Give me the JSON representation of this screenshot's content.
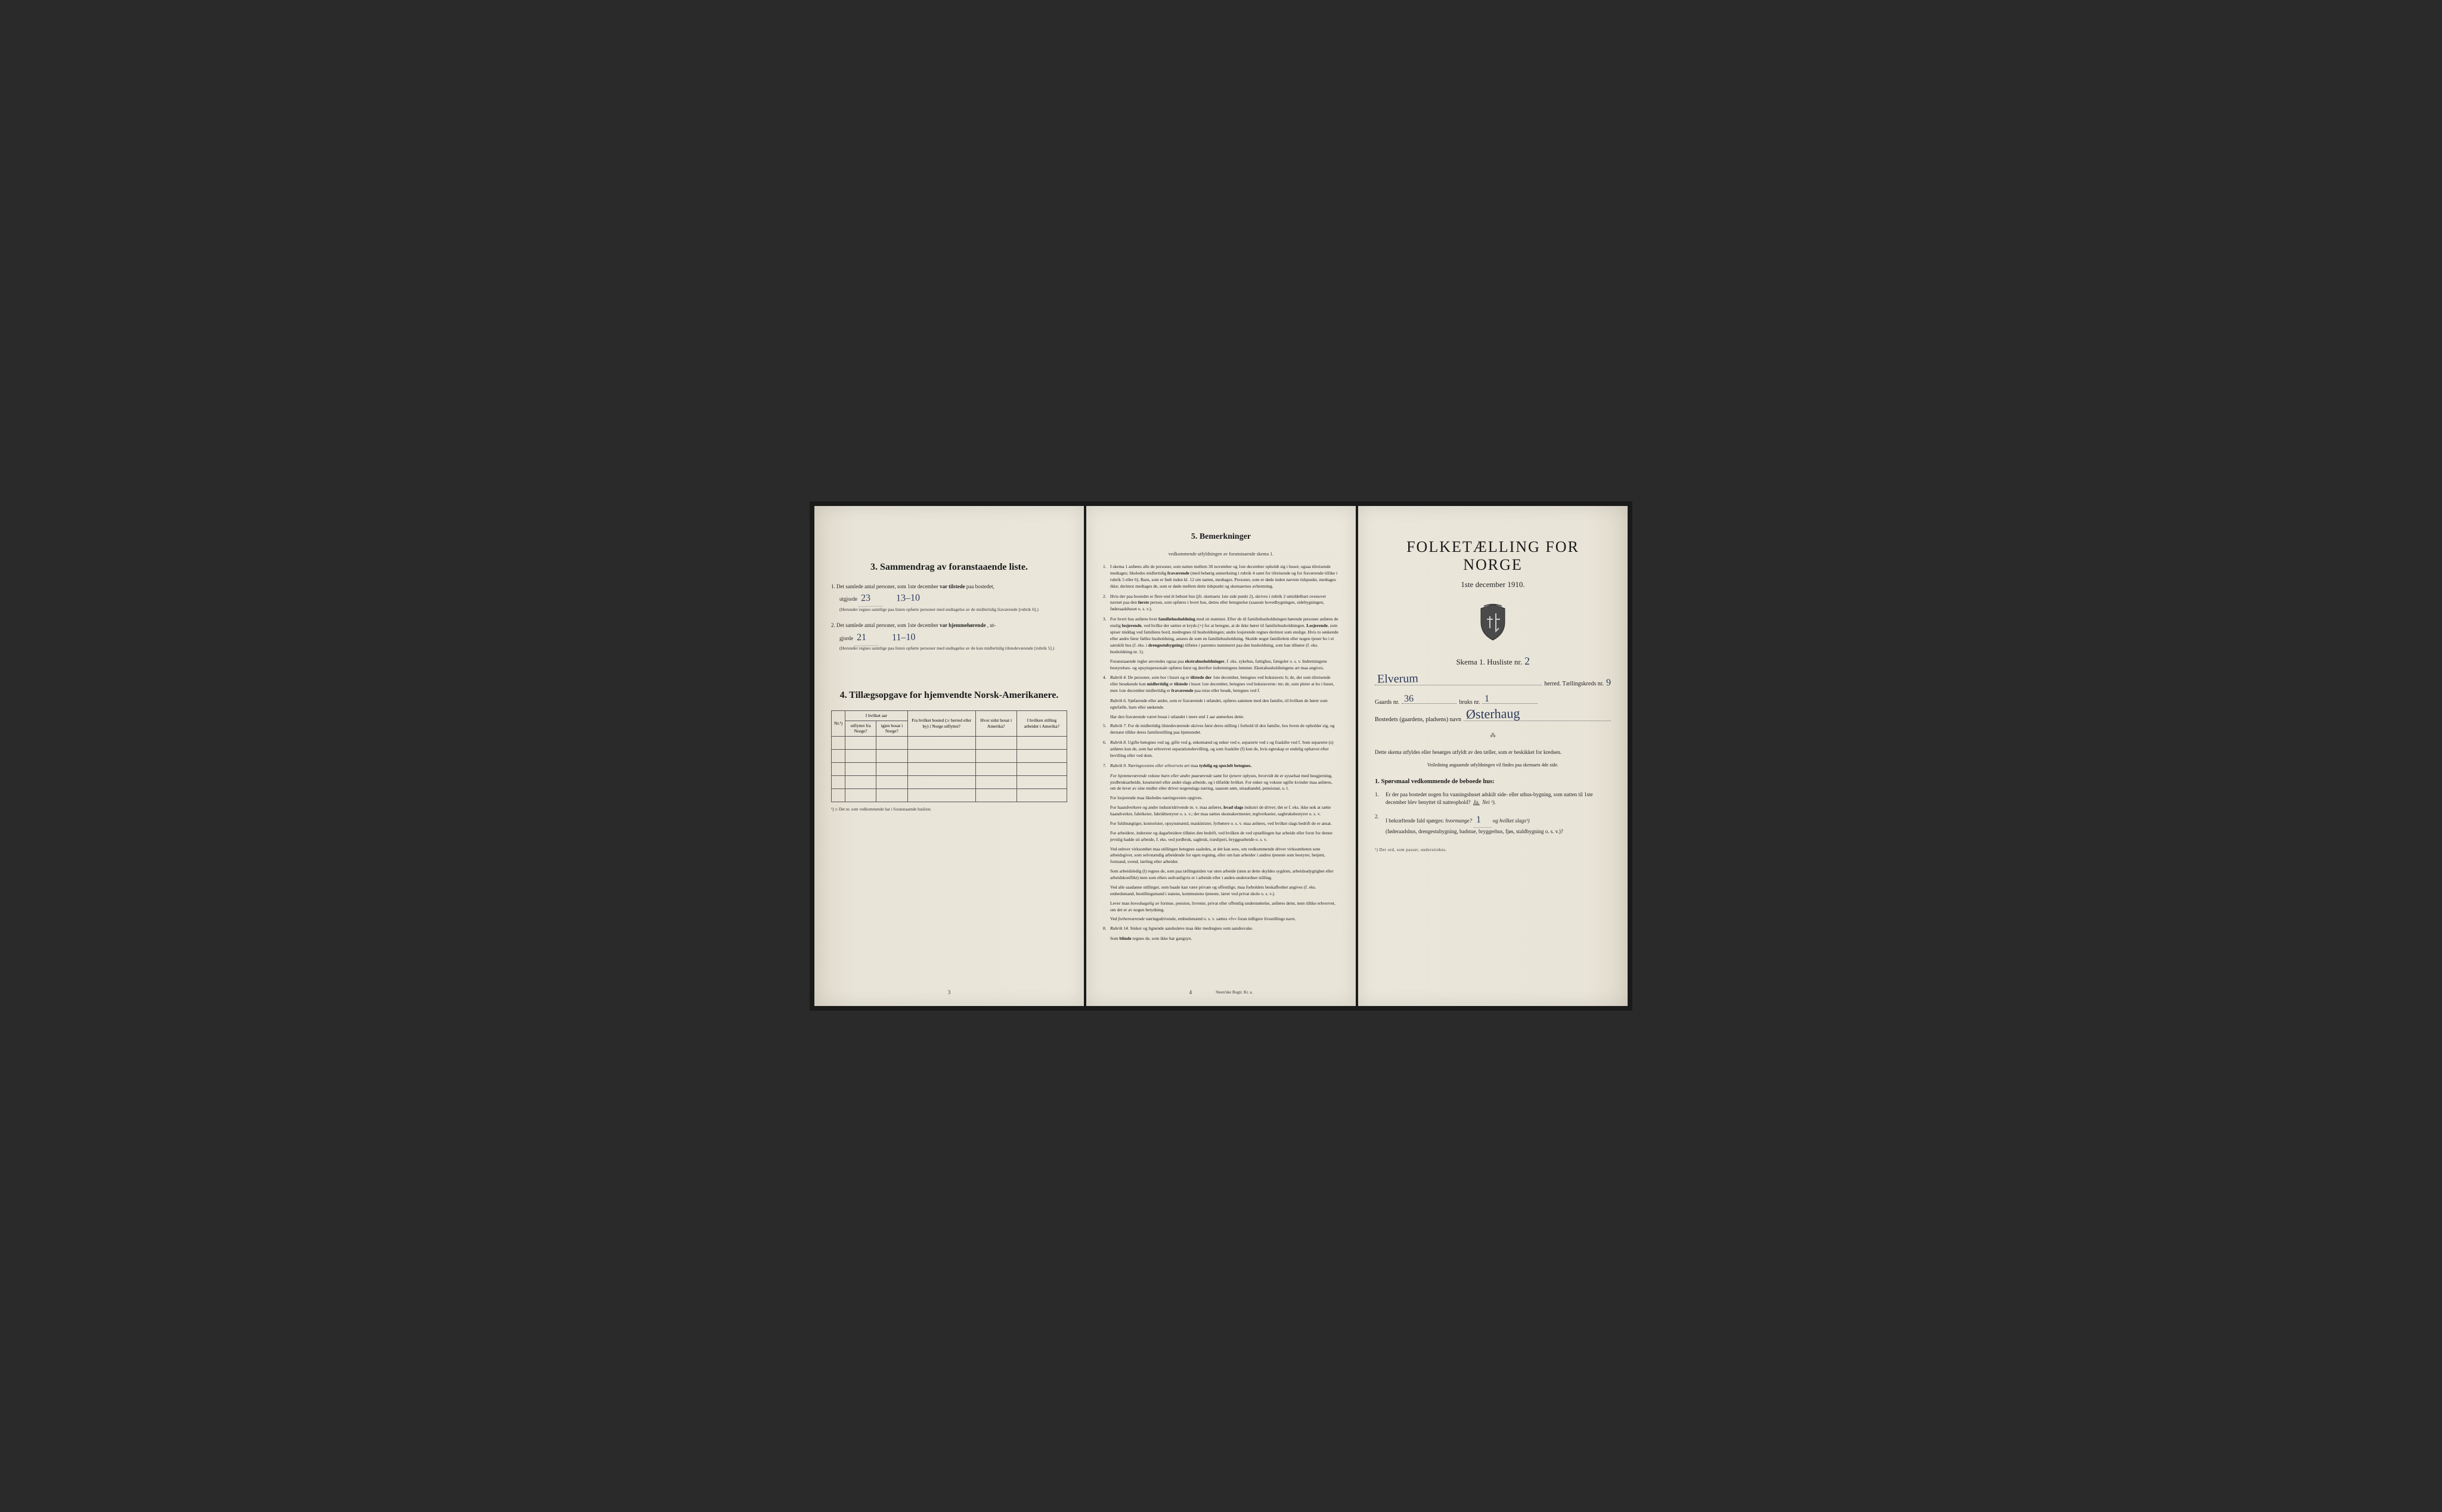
{
  "page1": {
    "section3_title": "3.   Sammendrag av foranstaaende liste.",
    "item1_prefix": "1.  Det samlede antal personer, som 1ste december",
    "item1_bold": "var tilstede",
    "item1_suffix": "paa bostedet,",
    "item1_line2": "utgjorde",
    "item1_hand1": "23",
    "item1_hand2": "13–10",
    "item1_note": "(Herunder regnes samtlige paa listen opførte personer med undtagelse av de midlertidig fraværende [rubrik 6].)",
    "item2_prefix": "2.  Det samlede antal personer, som 1ste december",
    "item2_bold": "var hjemmehørende",
    "item2_suffix": ", ut-",
    "item2_line2": "gjorde",
    "item2_hand1": "21",
    "item2_hand2": "11–10",
    "item2_note": "(Herunder regnes samtlige paa listen opførte personer med undtagelse av de kun midlertidig tilstedeværende [rubrik 5].)",
    "section4_title": "4.   Tillægsopgave for hjemvendte Norsk-Amerikanere.",
    "table_headers": {
      "col1": "Nr.¹)",
      "col2a": "I hvilket aar",
      "col2b": "utflyttet fra Norge?",
      "col2c": "igjen bosat i Norge?",
      "col3": "Fra hvilket bosted (ɔ: herred eller by) i Norge utflyttet?",
      "col4": "Hvor sidst bosat i Amerika?",
      "col5": "I hvilken stilling arbeidet i Amerika?"
    },
    "table_footnote": "¹) ɔ: Det nr. som vedkommende har i foranstaaende husliste.",
    "page_num": "3"
  },
  "page2": {
    "title": "5.   Bemerkninger",
    "subtitle": "vedkommende utfyldningen av foranstaaende skema 1.",
    "items": [
      {
        "n": "1.",
        "text": "I skema 1 anføres alle de personer, som natten mellem 30 november og 1ste december opholdt sig i huset; ogsaa tilreisende medtages; likeledes midlertidig <b>fraværende</b> (med behørig anmerkning i rubrik 4 samt for tilreisende og for fraværende tillike i rubrik 5 eller 6). Barn, som er født inden kl. 12 om natten, medtages. Personer, som er døde inden nævnte tidspunkt, medtages ikke; derimot medtages de, som er døde mellem dette tidspunkt og skemaernes avhentning."
      },
      {
        "n": "2.",
        "text": "Hvis der paa bostedet er flere end ét beboet hus (jfr. skemaets 1ste side punkt 2), skrives i rubrik 2 umiddelbart ovenover navnet paa den <b>første</b> person, som opføres i hvert hus, dettes eller betegnelse (saasom hovedbygningen, sidebygningen, føderaadshuset o. s. v.)."
      },
      {
        "n": "3.",
        "text": "For hvert hus anføres hver <b>familiehusholdning</b> med sit nummer. Efter de til familiehusholdningen hørende personer anføres de enslig <b>losjerende</b>, ved hvilke der sættes et kryds (×) for at betegne, at de ikke hører til familiehusholdningen. <b>Losjerende</b>, som spiser middag ved familiens bord, medregnes til husholdningen; andre losjerende regnes derimot som enslige. Hvis to søskende eller andre fører fælles husholdning, ansees de som en familiehusholdning. Skulde noget familielem eller nogen tjener bo i et særskilt hus (f. eks. i <b>drengestubygning</b>) tilføies i parentes nummeret paa den husholdning, som han tilhører (f. eks. husholdning nr. 1)."
      },
      {
        "n": "",
        "text": "Foranstaaende regler anvendes ogsaa paa <b>ekstrahusholdninger</b>, f. eks. sykehus, fattighus, fængsler o. s. v. Indretningens bestyrelses- og opsynspersonale opføres først og derefter indretningens lemmer. Ekstrahusholdningens art maa angives."
      },
      {
        "n": "4.",
        "text": "<em>Rubrik 4.</em> De personer, som bor i huset og er <b>tilstede der</b> 1ste december, betegnes ved bokstaven: b; de, der som tilreisende eller besøkende kun <b>midlertidig</b> er <b>tilstede</b> i huset 1ste december, betegnes ved bokstaverne: mt; de, som pleier at bo i huset, men 1ste december midlertidig er <b>fraværende</b> paa reise eller besøk, betegnes ved f."
      },
      {
        "n": "",
        "text": "<em>Rubrik 6.</em> Sjøfarende eller andre, som er fraværende i utlandet, opføres sammen med den familie, til hvilken de hører som egtefælle, barn eller søskende."
      },
      {
        "n": "",
        "text": "Har den fraværende været bosat i utlandet i mere end 1 aar anmerkes dette."
      },
      {
        "n": "5.",
        "text": "<em>Rubrik 7.</em> For de midlertidig tilstedeværende skrives først deres stilling i forhold til den familie, hos hvem de opholder sig, og dernæst tillike deres familiestilling paa hjemstedet."
      },
      {
        "n": "6.",
        "text": "<em>Rubrik 8.</em> Ugifte betegnes ved ug, gifte ved g, enkemænd og enker ved e, separerte ved s og fraskilte ved f. Som separerte (s) anføres kun de, som har erhvervet separationsbevilling, og som fraskilte (f) kun de, hvis egteskap er endelig ophævet efter bevilling eller ved dom."
      },
      {
        "n": "7.",
        "text": "<em>Rubrik 9. Næringsveiens eller erhvervets art</em> maa <b>tydelig og specielt betegnes.</b>"
      },
      {
        "n": "",
        "text": "<em>For hjemmeværende voksne barn eller andre paarørende</em> samt for <em>tjenere</em> oplyses, hvorvidt de er sysselsat med husgjerning, jordbruksarbeide, kreaturstel eller andet slags arbeide, og i tilfælde hvilket. For enker og voksne ugifte kvinder maa anføres, om de lever av sine midler eller driver nogenslags næring, saasom søm, smaahandel, pensionat, o. l."
      },
      {
        "n": "",
        "text": "For losjerende maa likeledes næringsveien opgives."
      },
      {
        "n": "",
        "text": "For haandverkere og andre industridrivende m. v. maa anføres, <b>hvad slags</b> industri de driver; det er f. eks. ikke nok at sætte haandverker, fabrikeier, fabrikbestyrer o. s. v.; der maa sættes skomakermester, teglverkseier, sagbruksbestyrer o. s. v."
      },
      {
        "n": "",
        "text": "For fuldmægtiger, kontorister, opsynsmænd, maskinister, fyrbøtere o. s. v. maa anføres, ved hvilket slags bedrift de er ansat."
      },
      {
        "n": "",
        "text": "For arbeidere, inderster og dagarbeidere tilføies den bedrift, ved hvilken de ved optællingen har arbeide eller forut for denne jevnlig hadde sit arbeide, f. eks. ved jordbruk, sagbruk, træsliperi, bryggearbeide o. s. v."
      },
      {
        "n": "",
        "text": "Ved enhver virksomhet maa stillingen betegnes saaledes, at det kan sees, om vedkommende driver virksomheten som arbeidsgiver, som selvstændig arbeidende for egen regning, eller om han arbeider i andres tjeneste som bestyrer, betjent, formand, svend, lærling eller arbeider."
      },
      {
        "n": "",
        "text": "Som arbeidsledig (l) regnes de, som paa tællingstiden var uten arbeide (uten at dette skyldes sygdom, arbeidsudygtighet eller arbeidskonflikt) men som ellers sedvanligvis er i arbeide eller i anden underordnet stilling."
      },
      {
        "n": "",
        "text": "Ved alle saadanne stillinger, som baade kan være private og offentlige, maa forholdets beskaffenhet angives (f. eks. embedsmand, bestillingsmand i statens, kommunens tjeneste, lærer ved privat skole o. s. v.)."
      },
      {
        "n": "",
        "text": "Lever man <em>hovedsagelig</em> av formue, pension, livrente, privat eller offentlig understøttelse, anføres dette, men tillike erhvervet, om det er av nogen betydning."
      },
      {
        "n": "",
        "text": "Ved <em>forhenværende</em> næringsdrivende, embedsmænd o. s. v. sættes «fv» foran tidligere livsstillings navn."
      },
      {
        "n": "8.",
        "text": "<em>Rubrik 14.</em> Sinker og lignende aandssløve maa <em>ikke</em> medregnes som aandssvake."
      },
      {
        "n": "",
        "text": "Som <b>blinde</b> regnes de, som ikke har gangsyn."
      }
    ],
    "page_num": "4",
    "printer": "Steen'ske Bogtr.   Kr. a."
  },
  "page3": {
    "main_title": "FOLKETÆLLING FOR NORGE",
    "date": "1ste december 1910.",
    "skema_label": "Skema 1.   Husliste nr.",
    "skema_hand": "2",
    "herred_hand": "Elverum",
    "herred_label": "herred.  Tællingskreds nr.",
    "kreds_hand": "9",
    "gaard_label": "Gaards nr.",
    "gaard_hand": "36",
    "bruk_label": "bruks nr.",
    "bruk_hand": "1",
    "bosted_label": "Bostedets (gaardens, pladsens) navn",
    "bosted_hand": "Østerhaug",
    "info1": "Dette skema utfyldes eller besørges utfyldt av den tæller, som er beskikket for kredsen.",
    "info2": "Veiledning angaaende utfyldningen vil findes paa skemaets 4de side.",
    "q_title": "1. Spørsmaal vedkommende de beboede hus:",
    "q1_num": "1.",
    "q1_text": "Er der paa bostedet nogen fra vaaningshuset adskilt side- eller uthus-bygning, som natten til 1ste december blev benyttet til natteophold?",
    "q1_ja": "Ja.",
    "q1_nei": "Nei ¹).",
    "q2_num": "2.",
    "q2_text_a": "I bekræftende fald spørges:",
    "q2_text_b": "hvormange?",
    "q2_hand": "1",
    "q2_text_c": "og hvilket slags¹)",
    "q2_text_d": "(føderaadshus, drengestubygning, badstue, bryggerhus, fjøs, staldbygning o. s. v.)?",
    "footnote": "¹) Det ord, som passer, understrekes."
  }
}
